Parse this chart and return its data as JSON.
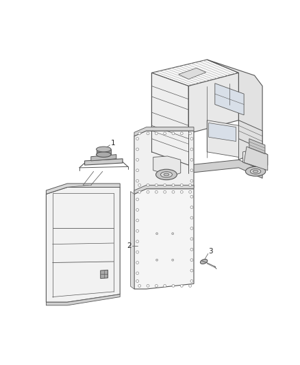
{
  "background_color": "#ffffff",
  "line_color": "#444444",
  "fig_width": 4.38,
  "fig_height": 5.33,
  "dpi": 100,
  "van_lc": "#555555",
  "part_lc": "#555555",
  "label_color": "#222222",
  "leader_color": "#666666"
}
